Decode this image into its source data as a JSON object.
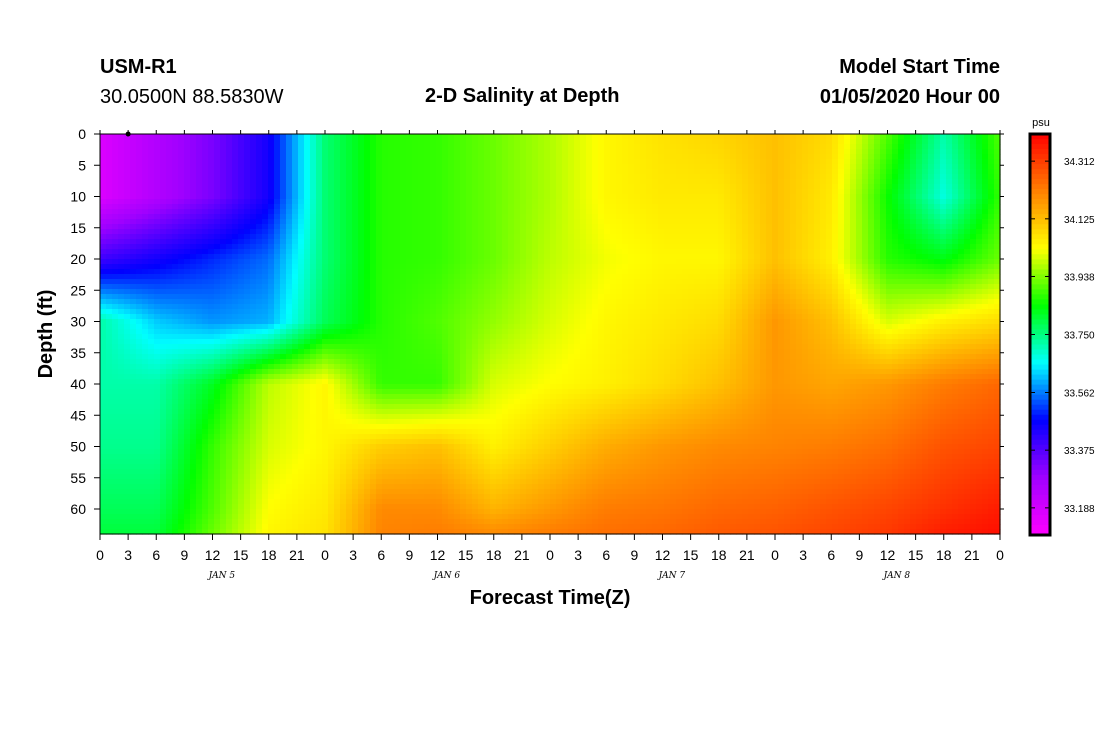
{
  "header": {
    "station": "USM-R1",
    "location": "30.0500N 88.5830W",
    "title": "2-D Salinity at Depth",
    "start_label": "Model Start Time",
    "start_value": "01/05/2020 Hour 00"
  },
  "chart_data": {
    "type": "heatmap",
    "title": "2-D Salinity at Depth",
    "xlabel": "Forecast Time(Z)",
    "ylabel": "Depth (ft)",
    "x_ticks": [
      "0",
      "3",
      "6",
      "9",
      "12",
      "15",
      "18",
      "21",
      "0",
      "3",
      "6",
      "9",
      "12",
      "15",
      "18",
      "21",
      "0",
      "3",
      "6",
      "9",
      "12",
      "15",
      "18",
      "21",
      "0",
      "3",
      "6",
      "9",
      "12",
      "15",
      "18",
      "21",
      "0"
    ],
    "x_hours_range": [
      0,
      96
    ],
    "day_labels": [
      {
        "label": "JAN 5",
        "hour": 13
      },
      {
        "label": "JAN 6",
        "hour": 37
      },
      {
        "label": "JAN 7",
        "hour": 61
      },
      {
        "label": "JAN 8",
        "hour": 85
      }
    ],
    "y_ticks": [
      0,
      5,
      10,
      15,
      20,
      25,
      30,
      35,
      40,
      45,
      50,
      55,
      60
    ],
    "ylim": [
      0,
      64
    ],
    "y_inverted": true,
    "colorbar": {
      "unit": "psu",
      "ticks": [
        34.312,
        34.125,
        33.938,
        33.75,
        33.562,
        33.375,
        33.188
      ],
      "range": [
        33.1,
        34.4
      ],
      "colors": [
        "#ff00ff",
        "#a000ff",
        "#0000ff",
        "#00ffff",
        "#00ff00",
        "#ffff00",
        "#ff8000",
        "#ff0000"
      ]
    },
    "depths": [
      0,
      10,
      20,
      30,
      40,
      50,
      60,
      64
    ],
    "hours": [
      0,
      6,
      12,
      18,
      24,
      30,
      36,
      42,
      48,
      54,
      60,
      66,
      72,
      78,
      84,
      90,
      96
    ],
    "values": [
      [
        33.17,
        33.25,
        33.33,
        33.45,
        33.76,
        33.87,
        33.88,
        33.92,
        33.97,
        34.04,
        34.07,
        34.09,
        34.12,
        34.08,
        33.9,
        33.72,
        33.9
      ],
      [
        33.17,
        33.25,
        33.33,
        33.45,
        33.76,
        33.87,
        33.88,
        33.92,
        33.97,
        34.04,
        34.06,
        34.06,
        34.12,
        34.06,
        33.85,
        33.68,
        33.88
      ],
      [
        33.4,
        33.45,
        33.5,
        33.55,
        33.76,
        33.87,
        33.88,
        33.92,
        33.98,
        34.02,
        34.04,
        34.04,
        34.12,
        34.05,
        33.87,
        33.83,
        33.92
      ],
      [
        33.72,
        33.62,
        33.58,
        33.6,
        33.78,
        33.87,
        33.9,
        33.95,
        34.0,
        34.04,
        34.06,
        34.08,
        34.18,
        34.12,
        34.0,
        34.05,
        34.08
      ],
      [
        33.72,
        33.72,
        33.82,
        33.98,
        34.04,
        33.88,
        33.88,
        34.0,
        34.03,
        34.05,
        34.08,
        34.12,
        34.18,
        34.16,
        34.18,
        34.22,
        34.25
      ],
      [
        33.74,
        33.74,
        33.88,
        34.0,
        34.04,
        34.1,
        34.12,
        34.05,
        34.1,
        34.15,
        34.18,
        34.2,
        34.21,
        34.22,
        34.24,
        34.28,
        34.3
      ],
      [
        33.78,
        33.78,
        33.9,
        34.03,
        34.06,
        34.2,
        34.2,
        34.14,
        34.18,
        34.22,
        34.23,
        34.25,
        34.26,
        34.28,
        34.3,
        34.33,
        34.36
      ],
      [
        33.8,
        33.8,
        33.92,
        34.04,
        34.07,
        34.21,
        34.22,
        34.2,
        34.22,
        34.24,
        34.25,
        34.27,
        34.28,
        34.3,
        34.32,
        34.36,
        34.38
      ]
    ]
  }
}
